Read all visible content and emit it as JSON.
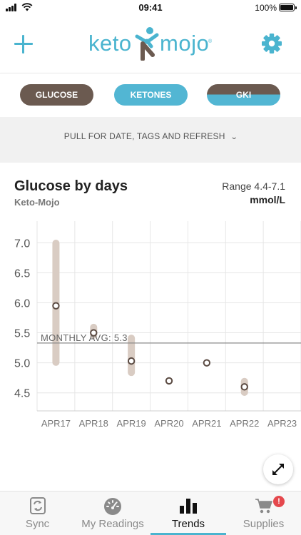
{
  "status_bar": {
    "time": "09:41",
    "battery": "100%"
  },
  "header": {
    "logo_left": "keto",
    "logo_right": "mojo",
    "logo_tm": "®"
  },
  "tabs": [
    {
      "label": "GLUCOSE"
    },
    {
      "label": "KETONES"
    },
    {
      "label": "GKI"
    }
  ],
  "pull": {
    "label": "PULL FOR DATE, TAGS AND REFRESH"
  },
  "chart": {
    "title": "Glucose by days",
    "subtitle": "Keto-Mojo",
    "range_label": "Range 4.4-7.1",
    "unit": "mmol/L",
    "avg_label": "MONTHLY AVG: 5.3"
  },
  "chart_data": {
    "type": "scatter",
    "title": "Glucose by days",
    "ylabel": "mmol/L",
    "categories": [
      "APR17",
      "APR18",
      "APR19",
      "APR20",
      "APR21",
      "APR22",
      "APR23"
    ],
    "yticks": [
      "7.0",
      "6.5",
      "6.0",
      "5.5",
      "5.0",
      "4.5"
    ],
    "ylim": [
      4.2,
      7.3
    ],
    "average": 5.33,
    "points": [
      {
        "x": "APR17",
        "value": 5.95,
        "min": 4.95,
        "max": 7.05
      },
      {
        "x": "APR18",
        "value": 5.5,
        "min": 5.4,
        "max": 5.65
      },
      {
        "x": "APR19",
        "value": 5.03,
        "min": 4.78,
        "max": 5.47
      },
      {
        "x": "APR20",
        "value": 4.7,
        "min": 4.7,
        "max": 4.7
      },
      {
        "x": "APR21",
        "value": 5.0,
        "min": 5.0,
        "max": 5.0
      },
      {
        "x": "APR22",
        "value": 4.6,
        "min": 4.45,
        "max": 4.75
      }
    ],
    "range_color": "#d9ccc3",
    "point_color": "#5a4a42",
    "grid": true
  },
  "nav": [
    {
      "label": "Sync",
      "icon": "sync-icon"
    },
    {
      "label": "My Readings",
      "icon": "gauge-icon"
    },
    {
      "label": "Trends",
      "icon": "bar-chart-icon"
    },
    {
      "label": "Supplies",
      "icon": "cart-icon",
      "badge": "!"
    }
  ],
  "colors": {
    "accent": "#4ab4cf",
    "glucose_tab": "#6b5a50",
    "ketones_tab": "#52b6d3"
  }
}
